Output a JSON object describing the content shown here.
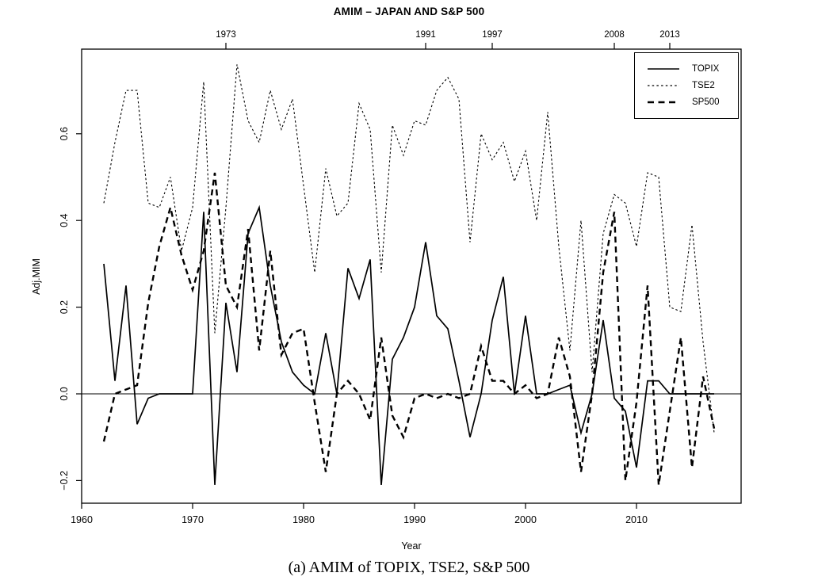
{
  "page": {
    "background": "#ffffff",
    "line_color": "#000000"
  },
  "chart_data": {
    "type": "line",
    "title": "AMIM – JAPAN AND S&P 500",
    "caption": "(a) AMIM of TOPIX, TSE2, S&P 500",
    "xlabel": "Year",
    "ylabel": "Adj.MIM",
    "xlim": [
      1960,
      2019
    ],
    "ylim": [
      -0.25,
      0.8
    ],
    "grid": false,
    "legend_position": "top-right",
    "zero_line": 0,
    "x_ticks_bottom": {
      "values": [
        1960,
        1970,
        1980,
        1990,
        2000,
        2010
      ],
      "labels": [
        "1960",
        "1970",
        "1980",
        "1990",
        "2000",
        "2010"
      ]
    },
    "x_ticks_top": {
      "values": [
        1973,
        1991,
        1997,
        2008,
        2013
      ],
      "labels": [
        "1973",
        "1991",
        "1997",
        "2008",
        "2013"
      ]
    },
    "y_ticks": {
      "values": [
        -0.2,
        0.0,
        0.2,
        0.4,
        0.6
      ],
      "labels": [
        "−0.2",
        "0.0",
        "0.2",
        "0.4",
        "0.6"
      ]
    },
    "x": [
      1962,
      1963,
      1964,
      1965,
      1966,
      1967,
      1968,
      1969,
      1970,
      1971,
      1972,
      1973,
      1974,
      1975,
      1976,
      1977,
      1978,
      1979,
      1980,
      1981,
      1982,
      1983,
      1984,
      1985,
      1986,
      1987,
      1988,
      1989,
      1990,
      1991,
      1992,
      1993,
      1994,
      1995,
      1996,
      1997,
      1998,
      1999,
      2000,
      2001,
      2002,
      2003,
      2004,
      2005,
      2006,
      2007,
      2008,
      2009,
      2010,
      2011,
      2012,
      2013,
      2014,
      2015,
      2016,
      2017
    ],
    "series": [
      {
        "name": "TOPIX",
        "style": "solid",
        "color": "#000000",
        "values": [
          0.3,
          0.03,
          0.25,
          -0.07,
          -0.01,
          0.0,
          0.0,
          0.0,
          0.0,
          0.42,
          -0.21,
          0.21,
          0.05,
          0.37,
          0.43,
          0.25,
          0.12,
          0.05,
          0.02,
          0.0,
          0.14,
          0.0,
          0.29,
          0.22,
          0.31,
          -0.21,
          0.08,
          0.13,
          0.2,
          0.35,
          0.18,
          0.15,
          0.03,
          -0.1,
          0.0,
          0.17,
          0.27,
          0.0,
          0.18,
          0.0,
          0.0,
          0.01,
          0.02,
          -0.09,
          0.0,
          0.17,
          -0.01,
          -0.04,
          -0.17,
          0.03,
          0.03,
          0.0,
          0.0,
          0.0,
          0.0,
          0.0
        ]
      },
      {
        "name": "TSE2",
        "style": "dotted",
        "color": "#000000",
        "values": [
          0.44,
          0.58,
          0.7,
          0.7,
          0.44,
          0.43,
          0.5,
          0.33,
          0.43,
          0.72,
          0.14,
          0.43,
          0.76,
          0.63,
          0.58,
          0.7,
          0.61,
          0.68,
          0.48,
          0.28,
          0.52,
          0.41,
          0.44,
          0.67,
          0.61,
          0.28,
          0.62,
          0.55,
          0.63,
          0.62,
          0.7,
          0.73,
          0.68,
          0.35,
          0.6,
          0.54,
          0.58,
          0.49,
          0.56,
          0.4,
          0.65,
          0.34,
          0.1,
          0.4,
          0.05,
          0.37,
          0.46,
          0.44,
          0.34,
          0.51,
          0.5,
          0.2,
          0.19,
          0.39,
          0.12,
          -0.09
        ]
      },
      {
        "name": "SP500",
        "style": "dashed",
        "color": "#000000",
        "values": [
          -0.11,
          0.0,
          0.01,
          0.02,
          0.21,
          0.34,
          0.43,
          0.32,
          0.24,
          0.33,
          0.51,
          0.25,
          0.2,
          0.38,
          0.1,
          0.33,
          0.09,
          0.14,
          0.15,
          -0.02,
          -0.18,
          0.0,
          0.03,
          0.0,
          -0.06,
          0.13,
          -0.05,
          -0.1,
          -0.01,
          0.0,
          -0.01,
          0.0,
          -0.01,
          0.0,
          0.11,
          0.03,
          0.03,
          0.0,
          0.02,
          -0.01,
          0.0,
          0.13,
          0.04,
          -0.18,
          0.0,
          0.28,
          0.42,
          -0.2,
          -0.02,
          0.25,
          -0.21,
          -0.04,
          0.13,
          -0.17,
          0.04,
          -0.08
        ]
      }
    ]
  }
}
